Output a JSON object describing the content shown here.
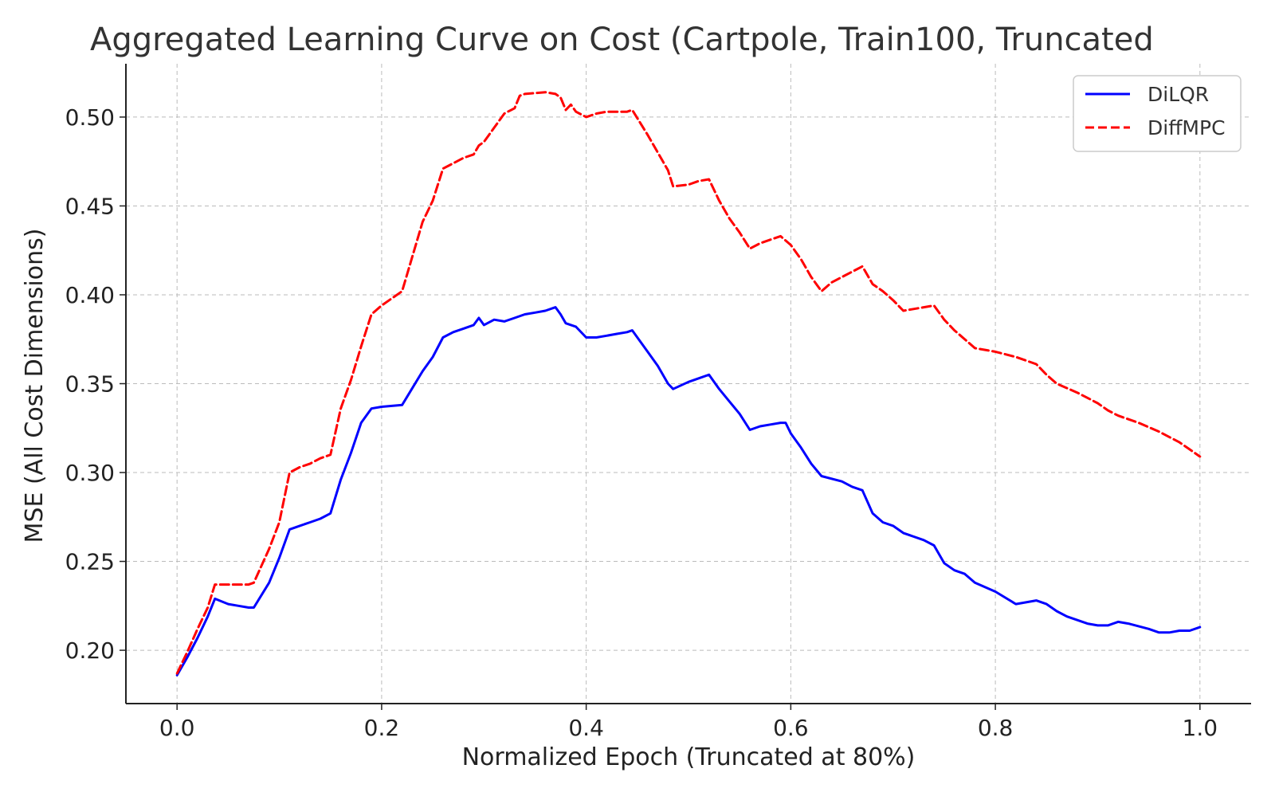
{
  "chart_data": {
    "type": "line",
    "title": "Aggregated Learning Curve on Cost (Cartpole, Train100, Truncated",
    "xlabel": "Normalized Epoch (Truncated at 80%)",
    "ylabel": "MSE (All Cost Dimensions)",
    "xlim": [
      -0.05,
      1.05
    ],
    "ylim": [
      0.17,
      0.53
    ],
    "x_ticks": [
      0.0,
      0.2,
      0.4,
      0.6,
      0.8,
      1.0
    ],
    "x_tick_labels": [
      "0.0",
      "0.2",
      "0.4",
      "0.6",
      "0.8",
      "1.0"
    ],
    "y_ticks": [
      0.2,
      0.25,
      0.3,
      0.35,
      0.4,
      0.45,
      0.5
    ],
    "y_tick_labels": [
      "0.20",
      "0.25",
      "0.30",
      "0.35",
      "0.40",
      "0.45",
      "0.50"
    ],
    "grid": true,
    "legend_position": "top-right",
    "series": [
      {
        "name": "DiLQR",
        "color": "#0000ff",
        "style": "solid",
        "points": [
          [
            0.0,
            0.186
          ],
          [
            0.01,
            0.196
          ],
          [
            0.02,
            0.207
          ],
          [
            0.03,
            0.219
          ],
          [
            0.037,
            0.229
          ],
          [
            0.05,
            0.226
          ],
          [
            0.06,
            0.225
          ],
          [
            0.07,
            0.224
          ],
          [
            0.075,
            0.224
          ],
          [
            0.09,
            0.238
          ],
          [
            0.1,
            0.252
          ],
          [
            0.11,
            0.268
          ],
          [
            0.12,
            0.27
          ],
          [
            0.13,
            0.272
          ],
          [
            0.14,
            0.274
          ],
          [
            0.15,
            0.277
          ],
          [
            0.16,
            0.296
          ],
          [
            0.17,
            0.311
          ],
          [
            0.18,
            0.328
          ],
          [
            0.19,
            0.336
          ],
          [
            0.2,
            0.337
          ],
          [
            0.22,
            0.338
          ],
          [
            0.24,
            0.357
          ],
          [
            0.25,
            0.365
          ],
          [
            0.26,
            0.376
          ],
          [
            0.27,
            0.379
          ],
          [
            0.28,
            0.381
          ],
          [
            0.29,
            0.383
          ],
          [
            0.295,
            0.387
          ],
          [
            0.3,
            0.383
          ],
          [
            0.31,
            0.386
          ],
          [
            0.32,
            0.385
          ],
          [
            0.33,
            0.387
          ],
          [
            0.34,
            0.389
          ],
          [
            0.35,
            0.39
          ],
          [
            0.36,
            0.391
          ],
          [
            0.37,
            0.393
          ],
          [
            0.375,
            0.389
          ],
          [
            0.38,
            0.384
          ],
          [
            0.39,
            0.382
          ],
          [
            0.4,
            0.376
          ],
          [
            0.41,
            0.376
          ],
          [
            0.42,
            0.377
          ],
          [
            0.43,
            0.378
          ],
          [
            0.44,
            0.379
          ],
          [
            0.445,
            0.38
          ],
          [
            0.46,
            0.368
          ],
          [
            0.47,
            0.36
          ],
          [
            0.48,
            0.35
          ],
          [
            0.485,
            0.347
          ],
          [
            0.5,
            0.351
          ],
          [
            0.51,
            0.353
          ],
          [
            0.52,
            0.355
          ],
          [
            0.53,
            0.347
          ],
          [
            0.54,
            0.34
          ],
          [
            0.55,
            0.333
          ],
          [
            0.56,
            0.324
          ],
          [
            0.57,
            0.326
          ],
          [
            0.58,
            0.327
          ],
          [
            0.59,
            0.328
          ],
          [
            0.595,
            0.328
          ],
          [
            0.6,
            0.322
          ],
          [
            0.61,
            0.314
          ],
          [
            0.62,
            0.305
          ],
          [
            0.63,
            0.298
          ],
          [
            0.65,
            0.295
          ],
          [
            0.66,
            0.292
          ],
          [
            0.67,
            0.29
          ],
          [
            0.68,
            0.277
          ],
          [
            0.69,
            0.272
          ],
          [
            0.7,
            0.27
          ],
          [
            0.71,
            0.266
          ],
          [
            0.73,
            0.262
          ],
          [
            0.74,
            0.259
          ],
          [
            0.75,
            0.249
          ],
          [
            0.76,
            0.245
          ],
          [
            0.77,
            0.243
          ],
          [
            0.78,
            0.238
          ],
          [
            0.8,
            0.233
          ],
          [
            0.82,
            0.226
          ],
          [
            0.83,
            0.227
          ],
          [
            0.84,
            0.228
          ],
          [
            0.85,
            0.226
          ],
          [
            0.86,
            0.222
          ],
          [
            0.87,
            0.219
          ],
          [
            0.89,
            0.215
          ],
          [
            0.9,
            0.214
          ],
          [
            0.91,
            0.214
          ],
          [
            0.92,
            0.216
          ],
          [
            0.93,
            0.215
          ],
          [
            0.95,
            0.212
          ],
          [
            0.96,
            0.21
          ],
          [
            0.97,
            0.21
          ],
          [
            0.98,
            0.211
          ],
          [
            0.99,
            0.211
          ],
          [
            1.0,
            0.213
          ]
        ]
      },
      {
        "name": "DiffMPC",
        "color": "#ff0000",
        "style": "dashed",
        "points": [
          [
            0.0,
            0.187
          ],
          [
            0.01,
            0.199
          ],
          [
            0.02,
            0.212
          ],
          [
            0.03,
            0.224
          ],
          [
            0.037,
            0.237
          ],
          [
            0.05,
            0.237
          ],
          [
            0.06,
            0.237
          ],
          [
            0.07,
            0.237
          ],
          [
            0.075,
            0.238
          ],
          [
            0.09,
            0.257
          ],
          [
            0.1,
            0.272
          ],
          [
            0.11,
            0.3
          ],
          [
            0.12,
            0.303
          ],
          [
            0.13,
            0.305
          ],
          [
            0.14,
            0.308
          ],
          [
            0.15,
            0.31
          ],
          [
            0.16,
            0.336
          ],
          [
            0.17,
            0.352
          ],
          [
            0.18,
            0.371
          ],
          [
            0.19,
            0.389
          ],
          [
            0.2,
            0.394
          ],
          [
            0.22,
            0.402
          ],
          [
            0.24,
            0.441
          ],
          [
            0.25,
            0.453
          ],
          [
            0.26,
            0.471
          ],
          [
            0.27,
            0.474
          ],
          [
            0.28,
            0.477
          ],
          [
            0.29,
            0.479
          ],
          [
            0.295,
            0.484
          ],
          [
            0.3,
            0.486
          ],
          [
            0.31,
            0.494
          ],
          [
            0.32,
            0.502
          ],
          [
            0.33,
            0.505
          ],
          [
            0.335,
            0.512
          ],
          [
            0.34,
            0.513
          ],
          [
            0.36,
            0.514
          ],
          [
            0.37,
            0.513
          ],
          [
            0.375,
            0.511
          ],
          [
            0.38,
            0.504
          ],
          [
            0.385,
            0.507
          ],
          [
            0.39,
            0.503
          ],
          [
            0.4,
            0.5
          ],
          [
            0.41,
            0.502
          ],
          [
            0.42,
            0.503
          ],
          [
            0.43,
            0.503
          ],
          [
            0.44,
            0.503
          ],
          [
            0.445,
            0.504
          ],
          [
            0.46,
            0.49
          ],
          [
            0.47,
            0.48
          ],
          [
            0.48,
            0.47
          ],
          [
            0.485,
            0.461
          ],
          [
            0.5,
            0.462
          ],
          [
            0.51,
            0.464
          ],
          [
            0.52,
            0.465
          ],
          [
            0.53,
            0.453
          ],
          [
            0.54,
            0.443
          ],
          [
            0.55,
            0.435
          ],
          [
            0.56,
            0.426
          ],
          [
            0.57,
            0.429
          ],
          [
            0.58,
            0.431
          ],
          [
            0.59,
            0.433
          ],
          [
            0.6,
            0.428
          ],
          [
            0.61,
            0.42
          ],
          [
            0.62,
            0.41
          ],
          [
            0.63,
            0.402
          ],
          [
            0.64,
            0.407
          ],
          [
            0.65,
            0.41
          ],
          [
            0.66,
            0.413
          ],
          [
            0.67,
            0.416
          ],
          [
            0.68,
            0.406
          ],
          [
            0.69,
            0.402
          ],
          [
            0.7,
            0.397
          ],
          [
            0.71,
            0.391
          ],
          [
            0.72,
            0.392
          ],
          [
            0.74,
            0.394
          ],
          [
            0.75,
            0.386
          ],
          [
            0.76,
            0.38
          ],
          [
            0.77,
            0.375
          ],
          [
            0.78,
            0.37
          ],
          [
            0.8,
            0.368
          ],
          [
            0.82,
            0.365
          ],
          [
            0.83,
            0.363
          ],
          [
            0.84,
            0.361
          ],
          [
            0.85,
            0.355
          ],
          [
            0.86,
            0.35
          ],
          [
            0.88,
            0.345
          ],
          [
            0.9,
            0.339
          ],
          [
            0.91,
            0.335
          ],
          [
            0.92,
            0.332
          ],
          [
            0.94,
            0.328
          ],
          [
            0.96,
            0.323
          ],
          [
            0.98,
            0.317
          ],
          [
            0.99,
            0.313
          ],
          [
            1.0,
            0.309
          ]
        ]
      }
    ]
  }
}
